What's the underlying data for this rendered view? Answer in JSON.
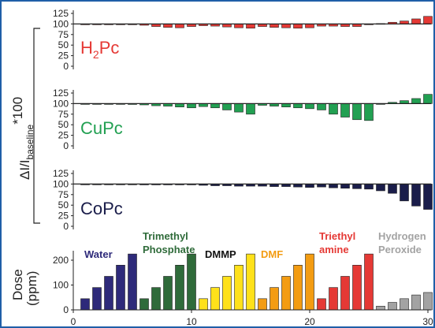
{
  "chart_data": {
    "type": "bar",
    "panels": [
      {
        "name": "H2Pc",
        "label_main": "H",
        "label_sub": "2",
        "label_rest": "Pc",
        "color": "#e53935",
        "ylim": [
          0,
          125
        ],
        "yticks": [
          "125",
          "100",
          "75",
          "50",
          "25",
          "0"
        ],
        "values": [
          99,
          99,
          99,
          99,
          99,
          97,
          94,
          92,
          91,
          94,
          96,
          95,
          93,
          91,
          90,
          94,
          92,
          91,
          90,
          91,
          95,
          95,
          94,
          94,
          99,
          101,
          104,
          107,
          112,
          118
        ]
      },
      {
        "name": "CuPc",
        "label_main": "CuPc",
        "color": "#22a052",
        "ylim": [
          0,
          125
        ],
        "yticks": [
          "125",
          "100",
          "75",
          "50",
          "25",
          "0"
        ],
        "values": [
          99,
          99,
          99,
          99,
          98,
          97,
          95,
          94,
          92,
          90,
          93,
          90,
          85,
          80,
          75,
          96,
          94,
          92,
          90,
          88,
          85,
          75,
          68,
          62,
          60,
          99,
          103,
          107,
          112,
          122
        ]
      },
      {
        "name": "CoPc",
        "label_main": "CoPc",
        "color": "#1a1d4a",
        "ylim": [
          0,
          125
        ],
        "yticks": [
          "125",
          "100",
          "75",
          "50",
          "25",
          "0"
        ],
        "values": [
          99,
          99,
          99,
          99,
          99,
          98,
          98,
          98,
          98,
          98,
          97,
          96,
          96,
          95,
          95,
          95,
          94,
          94,
          93,
          92,
          93,
          91,
          90,
          89,
          88,
          84,
          78,
          60,
          48,
          40
        ]
      }
    ],
    "shared_ylabel_main": "ΔI/I",
    "shared_ylabel_sub": "baseline",
    "shared_ylabel_sup": "*100",
    "dose": {
      "ylabel_line1": "Dose",
      "ylabel_line2": "(ppm)",
      "ylim": [
        0,
        250
      ],
      "yticks": [
        "200",
        "100",
        "0"
      ],
      "groups": [
        {
          "name_lines": [
            "Water"
          ],
          "color": "#2e2a7a",
          "values": [
            45,
            90,
            135,
            180,
            225
          ]
        },
        {
          "name_lines": [
            "Trimethyl",
            "Phosphate"
          ],
          "color": "#2f6b3a",
          "values": [
            45,
            90,
            135,
            180,
            225
          ]
        },
        {
          "name_lines": [
            "DMMP"
          ],
          "color": "#111111",
          "label_color": "#111111",
          "bar_color": "#ffe11a",
          "values": [
            45,
            90,
            135,
            180,
            225
          ]
        },
        {
          "name_lines": [
            "DMF"
          ],
          "color": "#f39c12",
          "values": [
            45,
            90,
            135,
            180,
            225
          ]
        },
        {
          "name_lines": [
            "Triethyl",
            "amine"
          ],
          "color": "#e53935",
          "values": [
            45,
            90,
            135,
            180,
            225
          ]
        },
        {
          "name_lines": [
            "Hydrogen",
            "Peroxide"
          ],
          "color": "#a3a3a3",
          "values": [
            15,
            30,
            45,
            60,
            70
          ]
        }
      ]
    },
    "x": {
      "ticks": [
        "0",
        "10",
        "20",
        "30"
      ],
      "xlim": [
        0,
        30
      ]
    }
  }
}
